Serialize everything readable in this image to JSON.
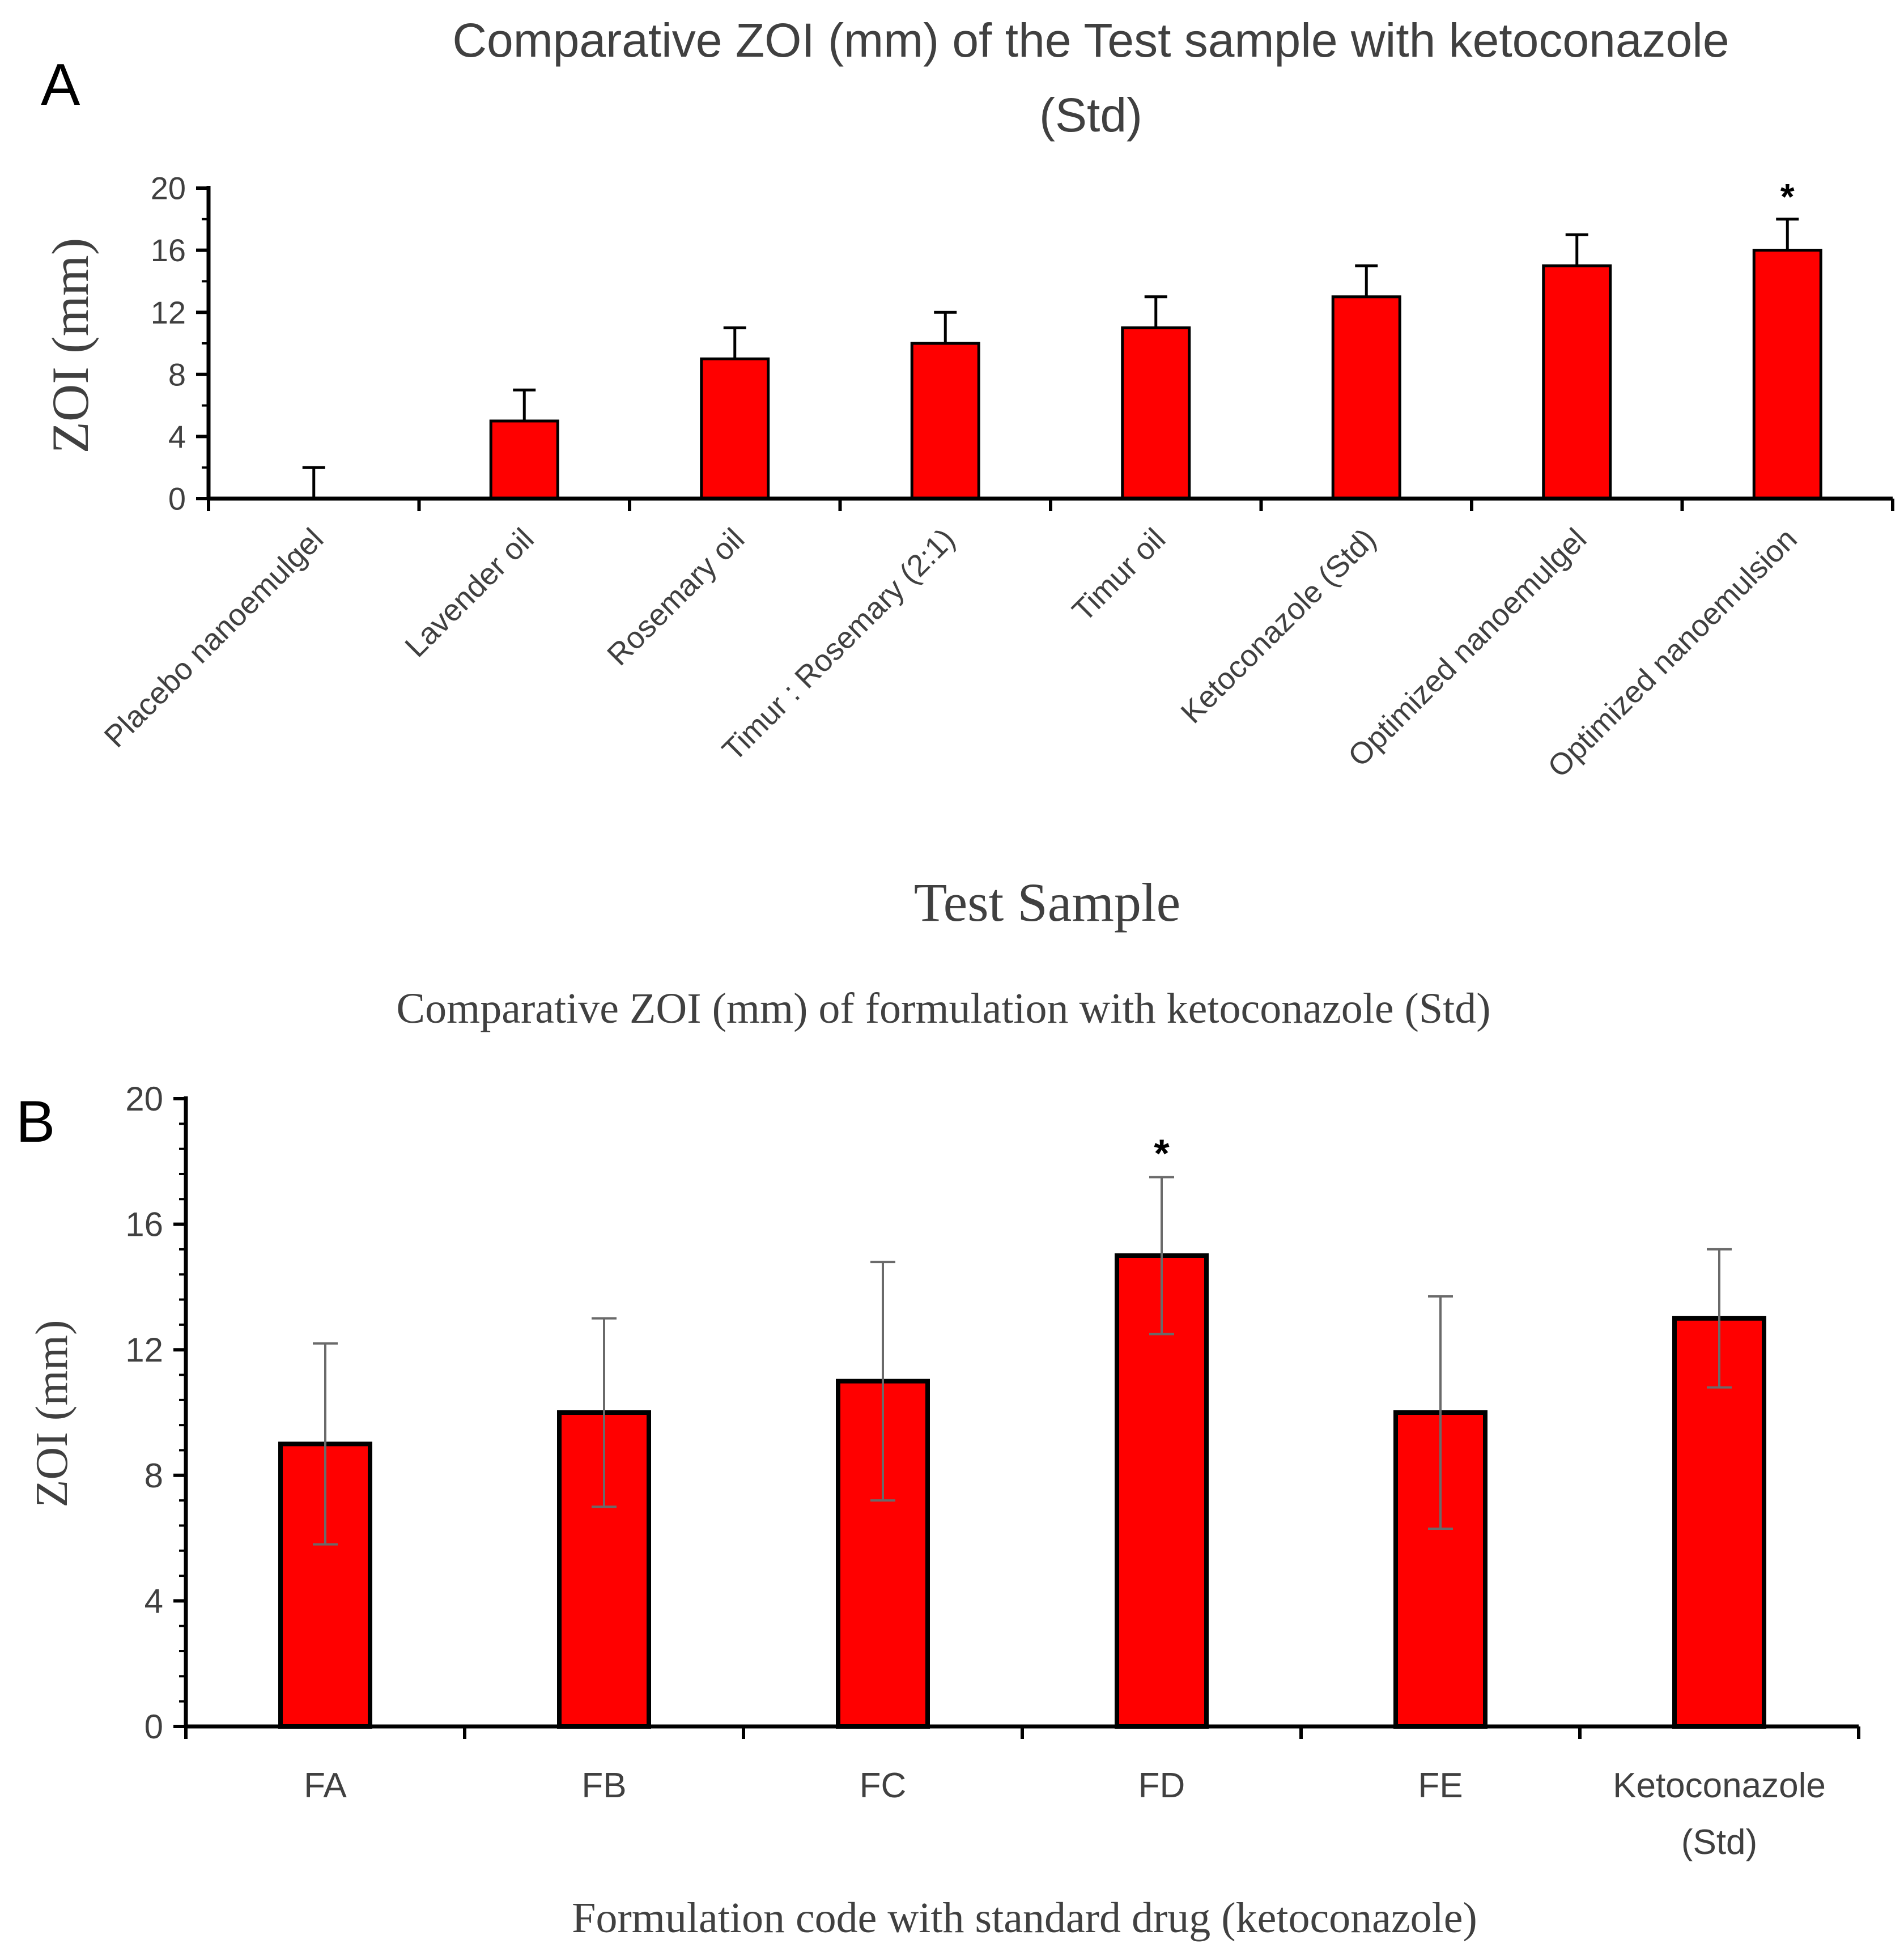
{
  "chart_data": [
    {
      "panel_label": "A",
      "type": "bar",
      "title": "Comparative ZOI (mm) of the Test sample with ketoconazole",
      "title_line2": "(Std)",
      "xlabel": "Test Sample",
      "ylabel": "ZOI (mm)",
      "ylim": [
        0,
        20
      ],
      "yticks": [
        "0",
        "4",
        "8",
        "12",
        "16",
        "20"
      ],
      "categories": [
        "Placebo nanoemulgel",
        "Lavender oil",
        "Rosemary oil",
        "Timur : Rosemary (2:1)",
        "Timur  oil",
        "Ketoconazole (Std)",
        "Optimized nanoemulgel",
        "Optimized nanoemulsion"
      ],
      "values": [
        0,
        5,
        9,
        10,
        11,
        13,
        15,
        16
      ],
      "error": [
        2,
        2,
        2,
        2,
        2,
        2,
        2,
        2
      ],
      "significance_marker": "*",
      "significant_index": 7,
      "bar_color": "#ff0000",
      "grid": false
    },
    {
      "panel_label": "B",
      "type": "bar",
      "title": "Comparative ZOI (mm) of formulation with ketoconazole (Std)",
      "xlabel": "Formulation code with standard drug (ketoconazole)",
      "ylabel": "ZOI (mm)",
      "ylim": [
        0,
        20
      ],
      "yticks": [
        "0",
        "4",
        "8",
        "12",
        "16",
        "20"
      ],
      "categories": [
        "FA",
        "FB",
        "FC",
        "FD",
        "FE",
        "Ketoconazole"
      ],
      "category_line2": [
        "",
        "",
        "",
        "",
        "",
        "(Std)"
      ],
      "values": [
        9,
        10,
        11,
        15,
        10,
        13
      ],
      "error": [
        3.2,
        3,
        3.8,
        2.5,
        3.7,
        2.2
      ],
      "significance_marker": "*",
      "significant_index": 3,
      "bar_color": "#ff0000",
      "grid": false
    }
  ]
}
